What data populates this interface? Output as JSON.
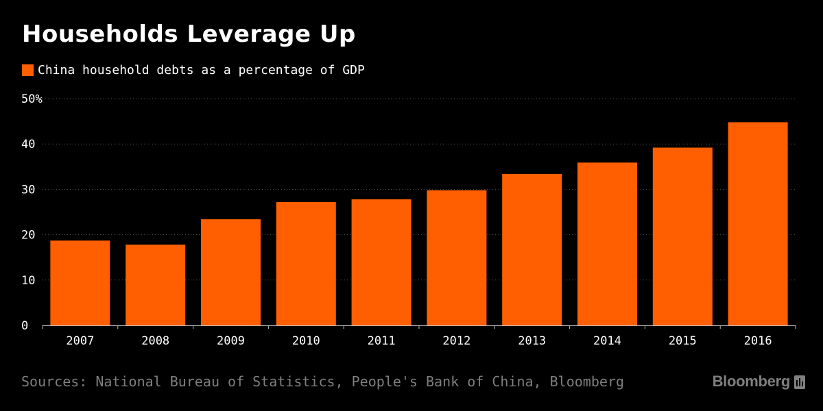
{
  "title": "Households Leverage Up",
  "legend_label": "China household debts as a percentage of GDP",
  "source": "Sources: National Bureau of Statistics, People's Bank of China, Bloomberg",
  "brand": "Bloomberg",
  "colors": {
    "background": "#000000",
    "bar": "#ff5f00",
    "text": "#ffffff",
    "muted": "#7f7f7f",
    "grid": "#555555"
  },
  "chart_data": {
    "type": "bar",
    "title": "Households Leverage Up",
    "legend": [
      "China household debts as a percentage of GDP"
    ],
    "legend_position": "top-left",
    "categories": [
      "2007",
      "2008",
      "2009",
      "2010",
      "2011",
      "2012",
      "2013",
      "2014",
      "2015",
      "2016"
    ],
    "series": [
      {
        "name": "China household debts as a percentage of GDP",
        "values": [
          18.7,
          17.8,
          23.4,
          27.2,
          27.8,
          29.8,
          33.4,
          35.9,
          39.2,
          44.8
        ]
      }
    ],
    "ylim": [
      0,
      50
    ],
    "yticks": [
      0,
      10,
      20,
      30,
      40,
      50
    ],
    "ytick_labels": [
      "0",
      "10",
      "20",
      "30",
      "40",
      "50%"
    ],
    "grid": "horizontal dotted",
    "xlabel": "",
    "ylabel": ""
  }
}
